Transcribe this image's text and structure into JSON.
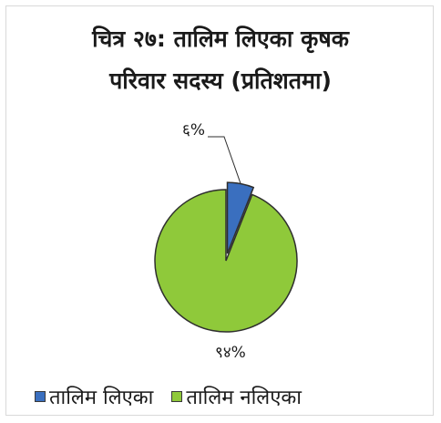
{
  "chart_data": {
    "type": "pie",
    "title": "चित्र २७: तालिम लिएका कृषक परिवार सदस्य (प्रतिशतमा)",
    "title_lines": [
      "चित्र २७: तालिम लिएका कृषक",
      "परिवार सदस्य (प्रतिशतमा)"
    ],
    "categories": [
      "तालिम लिएका",
      "तालिम नलिएका"
    ],
    "values": [
      6,
      94
    ],
    "value_labels": [
      "६%",
      "९४%"
    ],
    "colors": [
      "#3a6fbf",
      "#8fc93a"
    ],
    "exploded": [
      true,
      false
    ],
    "legend_position": "bottom-left"
  }
}
